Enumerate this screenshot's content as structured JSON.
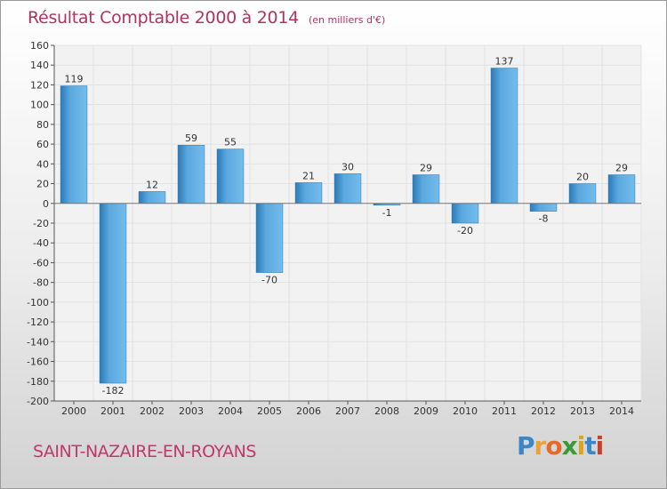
{
  "chart_data": {
    "type": "bar",
    "title": "Résultat Comptable 2000 à 2014",
    "subtitle": "(en milliers d'€)",
    "categories": [
      "2000",
      "2001",
      "2002",
      "2003",
      "2004",
      "2005",
      "2006",
      "2007",
      "2008",
      "2009",
      "2010",
      "2011",
      "2012",
      "2013",
      "2014"
    ],
    "values": [
      119,
      -182,
      12,
      59,
      55,
      -70,
      21,
      30,
      -1,
      29,
      -20,
      137,
      -8,
      20,
      29
    ],
    "ylim": [
      -200,
      160
    ],
    "yticks": [
      160,
      140,
      120,
      100,
      80,
      60,
      40,
      20,
      0,
      -20,
      -40,
      -60,
      -80,
      -100,
      -120,
      -140,
      -160,
      -180,
      -200
    ],
    "grid": true,
    "xlabel": "",
    "ylabel": ""
  },
  "commune": "SAINT-NAZAIRE-EN-ROYANS",
  "logo": {
    "text": "Proxiti",
    "letter_colors": [
      "#3a86c8",
      "#e8a23a",
      "#e36a2a",
      "#3a9a3a",
      "#d9a520",
      "#3a86c8",
      "#c8402a"
    ]
  },
  "colors": {
    "bar_light": "#6db8ea",
    "bar_dark": "#2b7ab8",
    "title": "#b0335c",
    "grid": "#e2e2e2"
  }
}
